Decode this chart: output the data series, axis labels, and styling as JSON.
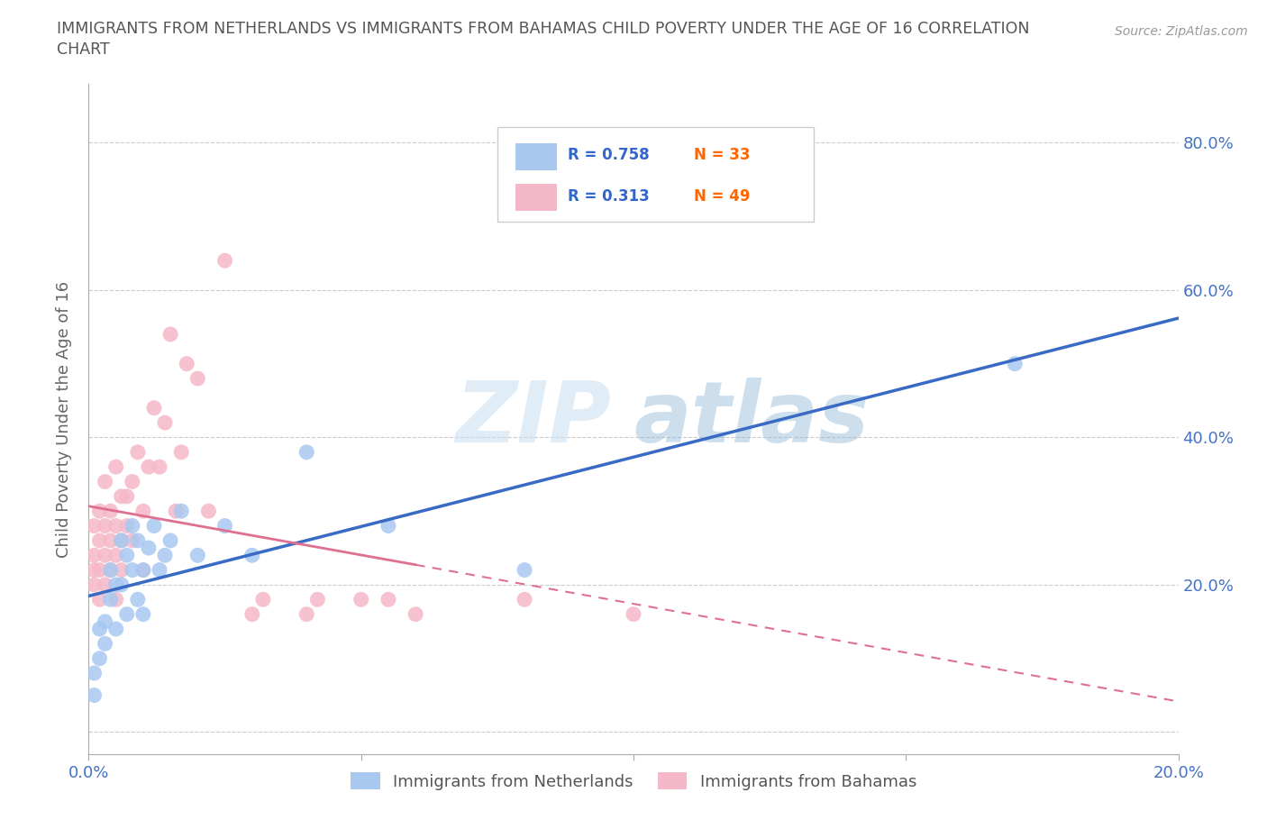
{
  "title_line1": "IMMIGRANTS FROM NETHERLANDS VS IMMIGRANTS FROM BAHAMAS CHILD POVERTY UNDER THE AGE OF 16 CORRELATION",
  "title_line2": "CHART",
  "source": "Source: ZipAtlas.com",
  "ylabel": "Child Poverty Under the Age of 16",
  "xlim": [
    0.0,
    0.2
  ],
  "ylim": [
    -0.03,
    0.88
  ],
  "yticks": [
    0.0,
    0.2,
    0.4,
    0.6,
    0.8
  ],
  "xticks": [
    0.0,
    0.05,
    0.1,
    0.15,
    0.2
  ],
  "netherlands_color": "#a8c8f0",
  "bahamas_color": "#f5b8c8",
  "netherlands_line_color": "#3a6bc4",
  "bahamas_line_color": "#e07090",
  "R_netherlands": 0.758,
  "N_netherlands": 33,
  "R_bahamas": 0.313,
  "N_bahamas": 49,
  "nl_x": [
    0.001,
    0.001,
    0.002,
    0.002,
    0.003,
    0.003,
    0.004,
    0.004,
    0.005,
    0.005,
    0.006,
    0.006,
    0.007,
    0.007,
    0.008,
    0.008,
    0.009,
    0.009,
    0.01,
    0.01,
    0.011,
    0.012,
    0.013,
    0.014,
    0.015,
    0.017,
    0.02,
    0.025,
    0.03,
    0.04,
    0.055,
    0.08,
    0.17
  ],
  "nl_y": [
    0.05,
    0.08,
    0.1,
    0.14,
    0.12,
    0.15,
    0.18,
    0.22,
    0.14,
    0.2,
    0.2,
    0.26,
    0.16,
    0.24,
    0.22,
    0.28,
    0.18,
    0.26,
    0.16,
    0.22,
    0.25,
    0.28,
    0.22,
    0.24,
    0.26,
    0.3,
    0.24,
    0.28,
    0.24,
    0.38,
    0.28,
    0.22,
    0.5
  ],
  "bh_x": [
    0.001,
    0.001,
    0.001,
    0.001,
    0.002,
    0.002,
    0.002,
    0.002,
    0.003,
    0.003,
    0.003,
    0.003,
    0.004,
    0.004,
    0.004,
    0.005,
    0.005,
    0.005,
    0.005,
    0.006,
    0.006,
    0.006,
    0.007,
    0.007,
    0.008,
    0.008,
    0.009,
    0.01,
    0.01,
    0.011,
    0.012,
    0.013,
    0.014,
    0.015,
    0.016,
    0.017,
    0.018,
    0.02,
    0.022,
    0.025,
    0.03,
    0.032,
    0.04,
    0.042,
    0.05,
    0.055,
    0.06,
    0.08,
    0.1
  ],
  "bh_y": [
    0.2,
    0.22,
    0.24,
    0.28,
    0.18,
    0.22,
    0.26,
    0.3,
    0.2,
    0.24,
    0.28,
    0.34,
    0.22,
    0.26,
    0.3,
    0.18,
    0.24,
    0.28,
    0.36,
    0.22,
    0.26,
    0.32,
    0.28,
    0.32,
    0.26,
    0.34,
    0.38,
    0.22,
    0.3,
    0.36,
    0.44,
    0.36,
    0.42,
    0.54,
    0.3,
    0.38,
    0.5,
    0.48,
    0.3,
    0.64,
    0.16,
    0.18,
    0.16,
    0.18,
    0.18,
    0.18,
    0.16,
    0.18,
    0.16
  ],
  "watermark_zip": "ZIP",
  "watermark_atlas": "atlas",
  "background_color": "#ffffff",
  "grid_color": "#cccccc",
  "title_color": "#555555",
  "axis_label_color": "#666666",
  "tick_label_color": "#4472c4",
  "legend_R_color": "#3366cc",
  "legend_N_color": "#ff6600"
}
